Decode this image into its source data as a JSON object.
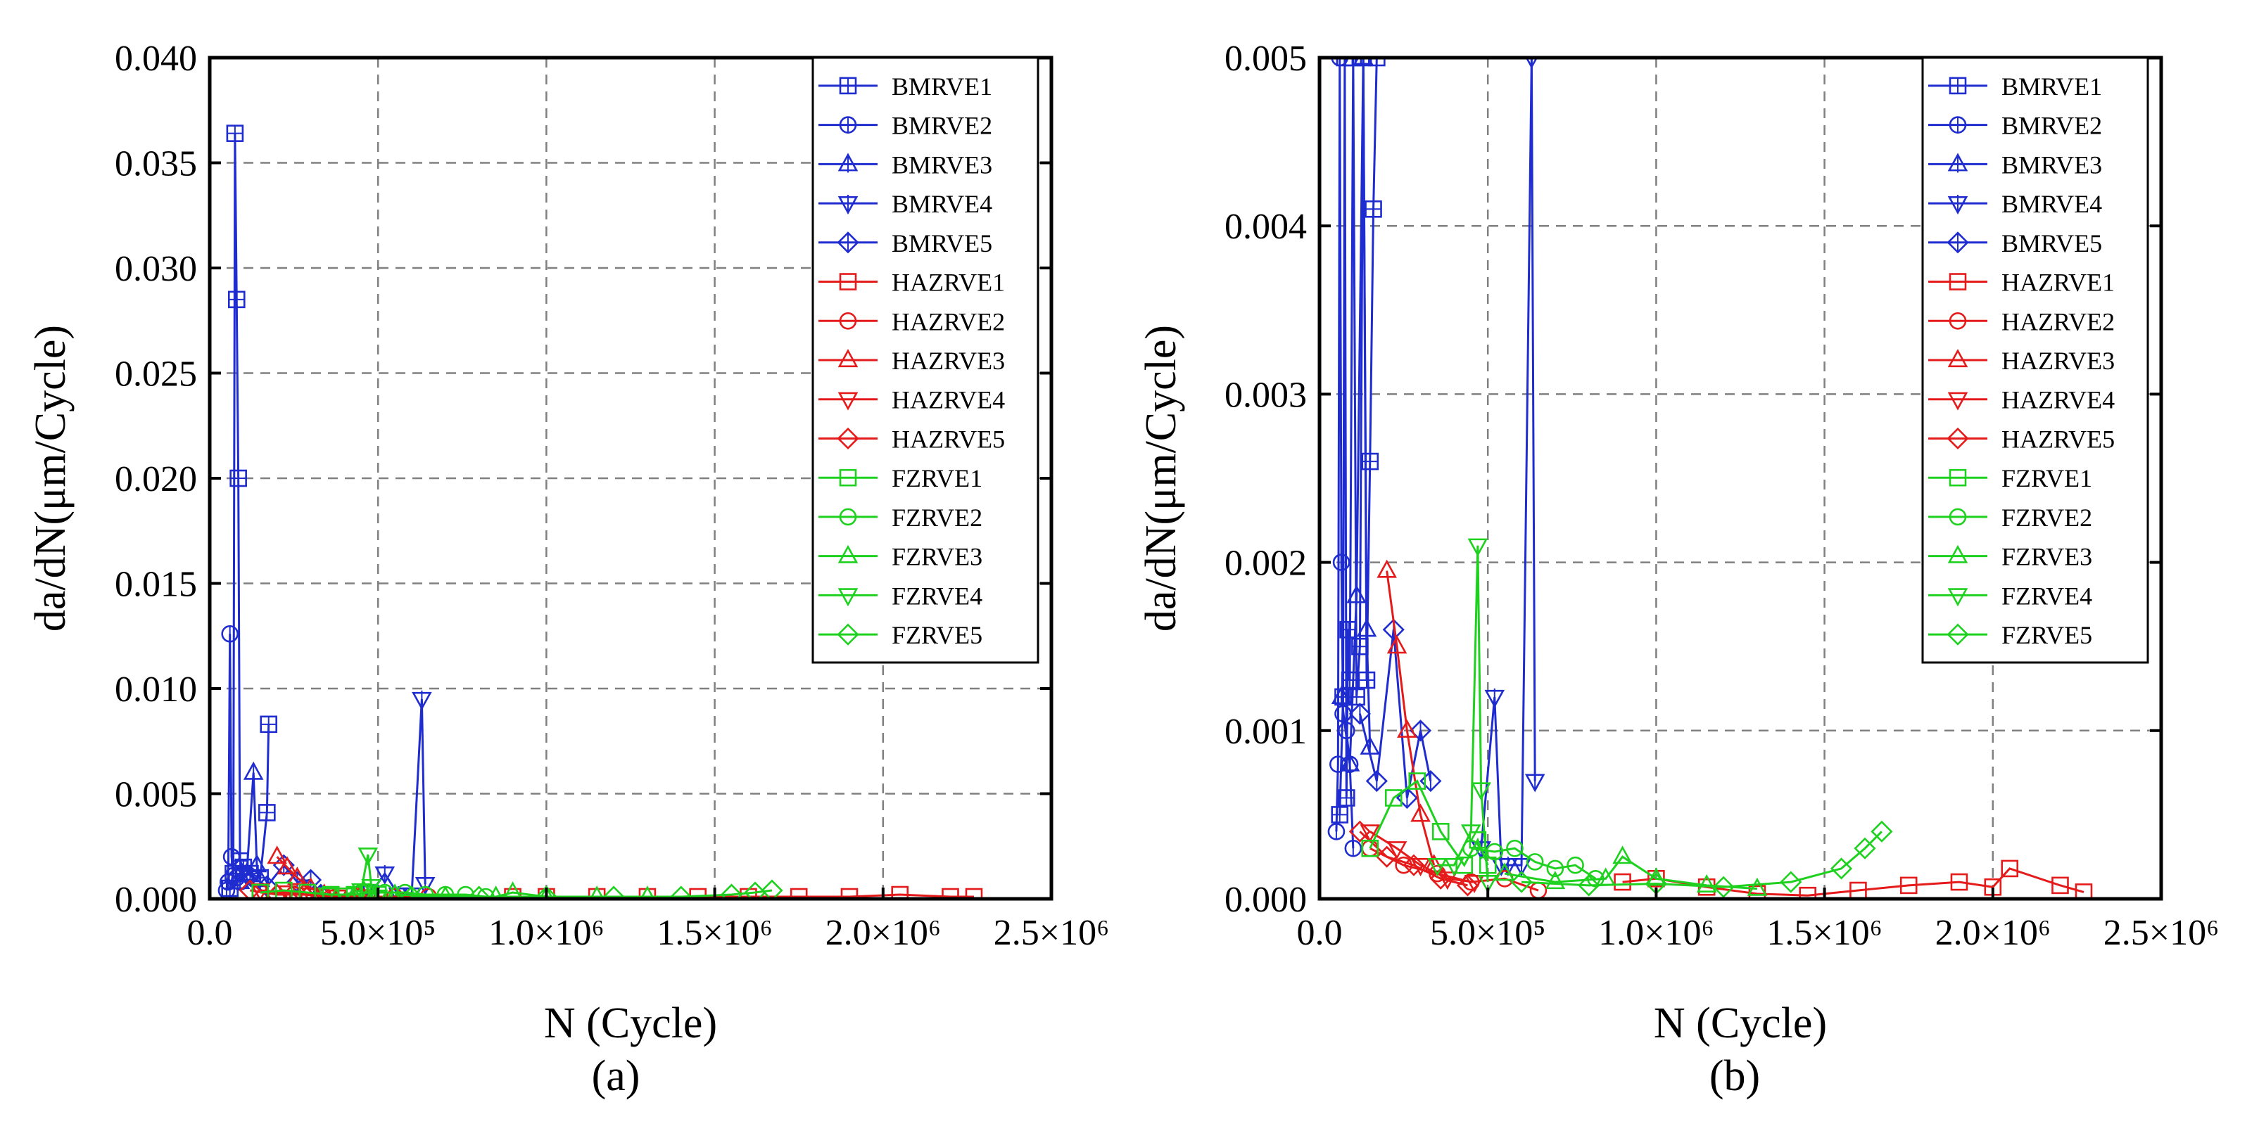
{
  "chart_data": [
    {
      "type": "line",
      "panel_label": "(a)",
      "xlabel": "N (Cycle)",
      "ylabel": "da/dN(μm/Cycle)",
      "xlim": [
        0,
        2500000
      ],
      "ylim": [
        0,
        0.04
      ],
      "grid": true,
      "legend_position": "top-right",
      "x_ticks": [
        {
          "value": 0,
          "label": "0.0"
        },
        {
          "value": 500000,
          "label": "5.0×10⁵"
        },
        {
          "value": 1000000,
          "label": "1.0×10⁶"
        },
        {
          "value": 1500000,
          "label": "1.5×10⁶"
        },
        {
          "value": 2000000,
          "label": "2.0×10⁶"
        },
        {
          "value": 2500000,
          "label": "2.5×10⁶"
        }
      ],
      "y_ticks": [
        {
          "value": 0,
          "label": "0.000"
        },
        {
          "value": 0.005,
          "label": "0.005"
        },
        {
          "value": 0.01,
          "label": "0.010"
        },
        {
          "value": 0.015,
          "label": "0.015"
        },
        {
          "value": 0.02,
          "label": "0.020"
        },
        {
          "value": 0.025,
          "label": "0.025"
        },
        {
          "value": 0.03,
          "label": "0.030"
        },
        {
          "value": 0.035,
          "label": "0.035"
        },
        {
          "value": 0.04,
          "label": "0.040"
        }
      ],
      "series": [
        {
          "name": "BMRVE1",
          "color": "#1f2ccf",
          "marker": "square-cross",
          "x": [
            60000,
            70000,
            75000,
            80000,
            85000,
            90000,
            100000,
            120000,
            150000,
            170000,
            175000
          ],
          "y": [
            0.0005,
            0.0012,
            0.0364,
            0.0285,
            0.02,
            0.0018,
            0.0015,
            0.0012,
            0.001,
            0.0041,
            0.0083
          ]
        },
        {
          "name": "BMRVE2",
          "color": "#1f2ccf",
          "marker": "circle-bar",
          "x": [
            50000,
            55000,
            60000,
            65000,
            70000,
            80000,
            90000
          ],
          "y": [
            0.0004,
            0.0008,
            0.0126,
            0.002,
            0.0011,
            0.001,
            0.0008
          ]
        },
        {
          "name": "BMRVE3",
          "color": "#1f2ccf",
          "marker": "triangle-up-bar",
          "x": [
            90000,
            110000,
            130000,
            140000,
            150000
          ],
          "y": [
            0.0008,
            0.0012,
            0.006,
            0.0016,
            0.0009
          ]
        },
        {
          "name": "BMRVE4",
          "color": "#1f2ccf",
          "marker": "triangle-down-bar",
          "x": [
            480000,
            520000,
            560000,
            600000,
            630000,
            640000
          ],
          "y": [
            0.0003,
            0.0012,
            0.0002,
            0.0002,
            0.0095,
            0.0007
          ]
        },
        {
          "name": "BMRVE5",
          "color": "#1f2ccf",
          "marker": "diamond-bar",
          "x": [
            120000,
            170000,
            220000,
            260000,
            300000,
            330000
          ],
          "y": [
            0.0011,
            0.0006,
            0.0016,
            0.0008,
            0.0009,
            0.0002
          ]
        },
        {
          "name": "HAZRVE1",
          "color": "#e51a1a",
          "marker": "square",
          "x": [
            900000,
            1000000,
            1150000,
            1300000,
            1450000,
            1600000,
            1750000,
            1900000,
            2050000,
            2200000,
            2270000
          ],
          "y": [
            0.0001,
            0.0001,
            0.0001,
            0.0001,
            0.0001,
            0.0001,
            0.0001,
            0.0001,
            0.0002,
            0.0001,
            0.0001
          ]
        },
        {
          "name": "HAZRVE2",
          "color": "#e51a1a",
          "marker": "circle",
          "x": [
            150000,
            250000,
            350000,
            450000,
            550000,
            650000
          ],
          "y": [
            0.0003,
            0.0002,
            0.0002,
            0.0001,
            0.0001,
            0.0001
          ]
        },
        {
          "name": "HAZRVE3",
          "color": "#e51a1a",
          "marker": "triangle-up",
          "x": [
            200000,
            230000,
            260000,
            300000,
            340000
          ],
          "y": [
            0.002,
            0.0015,
            0.001,
            0.0005,
            0.0002
          ]
        },
        {
          "name": "HAZRVE4",
          "color": "#e51a1a",
          "marker": "triangle-down",
          "x": [
            150000,
            230000,
            300000,
            380000,
            460000
          ],
          "y": [
            0.0004,
            0.0003,
            0.0002,
            0.0001,
            0.0001
          ]
        },
        {
          "name": "HAZRVE5",
          "color": "#e51a1a",
          "marker": "diamond",
          "x": [
            120000,
            200000,
            280000,
            360000,
            440000
          ],
          "y": [
            0.0004,
            0.0002,
            0.0002,
            0.0001,
            0.0001
          ]
        },
        {
          "name": "FZRVE1",
          "color": "#1fd11f",
          "marker": "square",
          "x": [
            150000,
            220000,
            290000,
            360000,
            430000,
            470000,
            500000
          ],
          "y": [
            0.0003,
            0.0004,
            0.0003,
            0.0002,
            0.0002,
            0.0003,
            0.0002
          ]
        },
        {
          "name": "FZRVE2",
          "color": "#1fd11f",
          "marker": "circle",
          "x": [
            450000,
            520000,
            580000,
            640000,
            700000,
            760000,
            820000
          ],
          "y": [
            0.0003,
            0.0003,
            0.0003,
            0.0002,
            0.0002,
            0.0002,
            0.0001
          ]
        },
        {
          "name": "FZRVE3",
          "color": "#1fd11f",
          "marker": "triangle-up",
          "x": [
            550000,
            700000,
            850000,
            900000,
            1000000,
            1150000,
            1300000
          ],
          "y": [
            0.0002,
            0.0001,
            0.0001,
            0.0003,
            0.0001,
            0.0001,
            0.0001
          ]
        },
        {
          "name": "FZRVE4",
          "color": "#1fd11f",
          "marker": "triangle-down",
          "x": [
            350000,
            400000,
            450000,
            470000,
            480000,
            500000
          ],
          "y": [
            0.0002,
            0.0002,
            0.0004,
            0.0021,
            0.0006,
            0.0001
          ]
        },
        {
          "name": "FZRVE5",
          "color": "#1fd11f",
          "marker": "diamond",
          "x": [
            600000,
            800000,
            1000000,
            1200000,
            1400000,
            1550000,
            1620000,
            1670000
          ],
          "y": [
            0.0001,
            0.0001,
            0.0001,
            0.0001,
            0.0001,
            0.0002,
            0.0003,
            0.0004
          ]
        }
      ]
    },
    {
      "type": "line",
      "panel_label": "(b)",
      "xlabel": "N (Cycle)",
      "ylabel": "da/dN(μm/Cycle)",
      "xlim": [
        0,
        2500000
      ],
      "ylim": [
        0,
        0.005
      ],
      "grid": true,
      "legend_position": "top-right",
      "x_ticks": [
        {
          "value": 0,
          "label": "0.0"
        },
        {
          "value": 500000,
          "label": "5.0×10⁵"
        },
        {
          "value": 1000000,
          "label": "1.0×10⁶"
        },
        {
          "value": 1500000,
          "label": "1.5×10⁶"
        },
        {
          "value": 2000000,
          "label": "2.0×10⁶"
        },
        {
          "value": 2500000,
          "label": "2.5×10⁶"
        }
      ],
      "y_ticks": [
        {
          "value": 0,
          "label": "0.000"
        },
        {
          "value": 0.001,
          "label": "0.001"
        },
        {
          "value": 0.002,
          "label": "0.002"
        },
        {
          "value": 0.003,
          "label": "0.003"
        },
        {
          "value": 0.004,
          "label": "0.004"
        },
        {
          "value": 0.005,
          "label": "0.005"
        }
      ],
      "series": [
        {
          "name": "BMRVE1",
          "color": "#1f2ccf",
          "marker": "square-cross",
          "x": [
            60000,
            70000,
            75000,
            80000,
            85000,
            90000,
            100000,
            110000,
            120000,
            130000,
            140000,
            150000,
            160000,
            170000
          ],
          "y": [
            0.0005,
            0.0012,
            0.005,
            0.0006,
            0.0016,
            0.0013,
            0.005,
            0.0012,
            0.0015,
            0.005,
            0.0013,
            0.0026,
            0.0041,
            0.005
          ]
        },
        {
          "name": "BMRVE2",
          "color": "#1f2ccf",
          "marker": "circle-bar",
          "x": [
            50000,
            55000,
            60000,
            65000,
            70000,
            80000,
            90000,
            100000
          ],
          "y": [
            0.0004,
            0.0008,
            0.005,
            0.002,
            0.0011,
            0.001,
            0.0008,
            0.0003
          ]
        },
        {
          "name": "BMRVE3",
          "color": "#1f2ccf",
          "marker": "triangle-up-bar",
          "x": [
            65000,
            90000,
            110000,
            130000,
            140000,
            150000
          ],
          "y": [
            0.0012,
            0.0008,
            0.0018,
            0.005,
            0.0016,
            0.0009
          ]
        },
        {
          "name": "BMRVE4",
          "color": "#1f2ccf",
          "marker": "triangle-down-bar",
          "x": [
            480000,
            520000,
            540000,
            560000,
            600000,
            630000,
            640000
          ],
          "y": [
            0.0003,
            0.0012,
            0.0002,
            0.0002,
            0.0002,
            0.005,
            0.0007
          ]
        },
        {
          "name": "BMRVE5",
          "color": "#1f2ccf",
          "marker": "diamond-bar",
          "x": [
            120000,
            170000,
            220000,
            260000,
            300000,
            330000
          ],
          "y": [
            0.0011,
            0.0007,
            0.0016,
            0.0006,
            0.001,
            0.0007
          ]
        },
        {
          "name": "HAZRVE1",
          "color": "#e51a1a",
          "marker": "square",
          "x": [
            900000,
            1000000,
            1150000,
            1300000,
            1450000,
            1600000,
            1750000,
            1900000,
            2000000,
            2050000,
            2200000,
            2270000
          ],
          "y": [
            0.0001,
            0.00012,
            7e-05,
            3e-05,
            2e-05,
            5e-05,
            8e-05,
            0.0001,
            7e-05,
            0.00018,
            8e-05,
            4e-05
          ]
        },
        {
          "name": "HAZRVE2",
          "color": "#e51a1a",
          "marker": "circle",
          "x": [
            150000,
            250000,
            350000,
            450000,
            550000,
            650000
          ],
          "y": [
            0.0003,
            0.0002,
            0.00015,
            0.0001,
            0.00012,
            5e-05
          ]
        },
        {
          "name": "HAZRVE3",
          "color": "#e51a1a",
          "marker": "triangle-up",
          "x": [
            200000,
            230000,
            260000,
            300000,
            340000
          ],
          "y": [
            0.00195,
            0.0015,
            0.001,
            0.0005,
            0.0002
          ]
        },
        {
          "name": "HAZRVE4",
          "color": "#e51a1a",
          "marker": "triangle-down",
          "x": [
            150000,
            230000,
            300000,
            380000,
            460000
          ],
          "y": [
            0.0004,
            0.0003,
            0.0002,
            0.00012,
            0.0001
          ]
        },
        {
          "name": "HAZRVE5",
          "color": "#e51a1a",
          "marker": "diamond",
          "x": [
            120000,
            200000,
            280000,
            360000,
            440000
          ],
          "y": [
            0.0004,
            0.00025,
            0.0002,
            0.00012,
            8e-05
          ]
        },
        {
          "name": "FZRVE1",
          "color": "#1fd11f",
          "marker": "square",
          "x": [
            150000,
            220000,
            290000,
            360000,
            430000,
            470000,
            500000
          ],
          "y": [
            0.0003,
            0.0006,
            0.0007,
            0.0004,
            0.0002,
            0.00035,
            0.0002
          ]
        },
        {
          "name": "FZRVE2",
          "color": "#1fd11f",
          "marker": "circle",
          "x": [
            450000,
            520000,
            580000,
            640000,
            700000,
            760000,
            820000
          ],
          "y": [
            0.0003,
            0.00028,
            0.0003,
            0.00022,
            0.00018,
            0.0002,
            0.00012
          ]
        },
        {
          "name": "FZRVE3",
          "color": "#1fd11f",
          "marker": "triangle-up",
          "x": [
            550000,
            700000,
            850000,
            900000,
            1000000,
            1150000,
            1300000
          ],
          "y": [
            0.00015,
            0.0001,
            0.00012,
            0.00025,
            0.00012,
            8e-05,
            6e-05
          ]
        },
        {
          "name": "FZRVE4",
          "color": "#1fd11f",
          "marker": "triangle-down",
          "x": [
            350000,
            400000,
            450000,
            470000,
            480000,
            500000
          ],
          "y": [
            0.0002,
            0.0002,
            0.0004,
            0.0021,
            0.00065,
            0.0001
          ]
        },
        {
          "name": "FZRVE5",
          "color": "#1fd11f",
          "marker": "diamond",
          "x": [
            600000,
            800000,
            1000000,
            1200000,
            1400000,
            1550000,
            1620000,
            1670000
          ],
          "y": [
            0.0001,
            8e-05,
            9e-05,
            7e-05,
            0.0001,
            0.00018,
            0.0003,
            0.0004
          ]
        }
      ]
    }
  ]
}
